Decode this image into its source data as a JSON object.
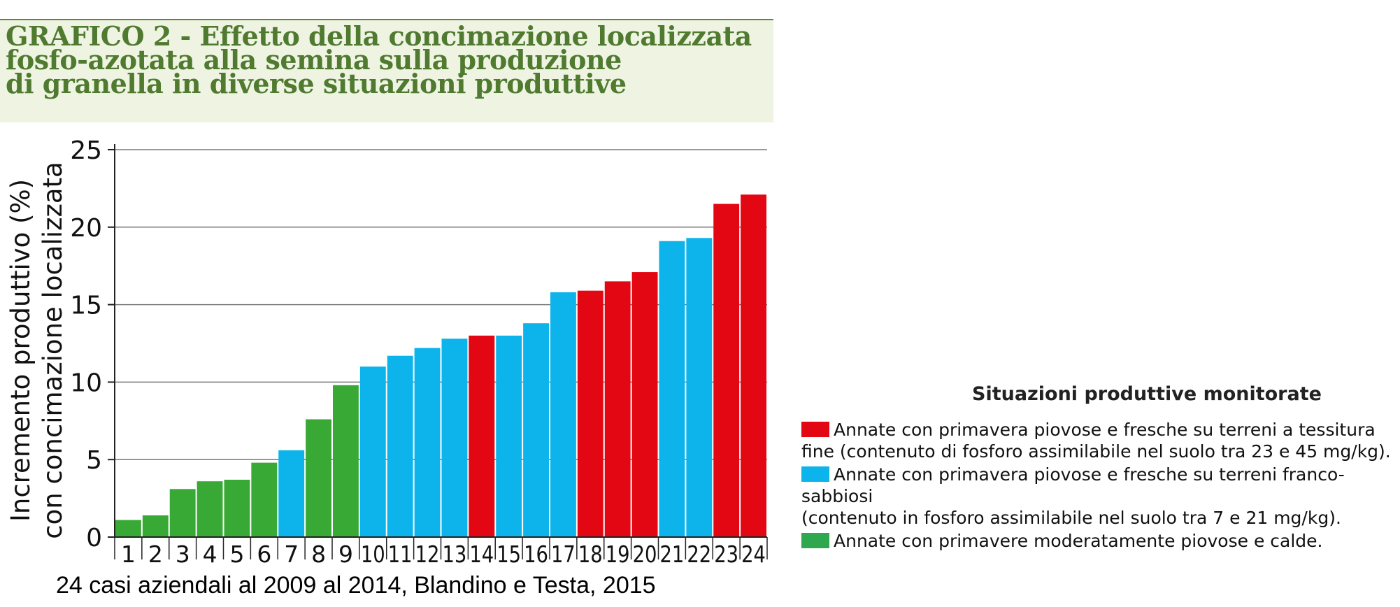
{
  "header": {
    "title_lines": [
      "GRAFICO 2 - Effetto della concimazione localizzata",
      "fosfo-azotata alla semina sulla produzione",
      "di granella in diverse situazioni produttive"
    ]
  },
  "legend": {
    "title": "Situazioni produttive monitorate",
    "items": [
      {
        "text": "Annate con primavera piovose e fresche su terreni a tessitura\nfine (contenuto di fosforo assimilabile nel suolo tra 23 e 45 mg/kg).",
        "color": "#e30613"
      },
      {
        "text": "Annate con primavera piovose e fresche su terreni franco-sabbiosi\n(contenuto in fosforo assimilabile nel suolo tra 7 e 21 mg/kg).",
        "color": "#0db4ec"
      },
      {
        "text": "Annate con primavere moderatamente piovose e calde.",
        "color": "#2ea84f"
      }
    ]
  },
  "caption": "24 casi aziendali al 2009 al 2014, Blandino e Testa, 2015",
  "chart_data": {
    "type": "bar",
    "title": "GRAFICO 2 - Effetto della concimazione localizzata fosfo-azotata alla semina sulla produzione di granella in diverse situazioni produttive",
    "xlabel": "",
    "ylabel_lines": [
      "Incremento produttivo (%)",
      "con concimazione localizzata"
    ],
    "ylim": [
      0,
      25
    ],
    "yticks": [
      0,
      5,
      10,
      15,
      20,
      25
    ],
    "grid": "horizontal",
    "legend_placement": "right",
    "categories": [
      "1",
      "2",
      "3",
      "4",
      "5",
      "6",
      "7",
      "8",
      "9",
      "10",
      "11",
      "12",
      "13",
      "14",
      "15",
      "16",
      "17",
      "18",
      "19",
      "20",
      "21",
      "22",
      "23",
      "24"
    ],
    "values": [
      1.1,
      1.4,
      3.1,
      3.6,
      3.7,
      4.8,
      5.6,
      7.6,
      9.8,
      11.0,
      11.7,
      12.2,
      12.8,
      13.0,
      13.0,
      13.8,
      15.8,
      15.9,
      16.5,
      17.1,
      19.1,
      19.3,
      21.5,
      22.1
    ],
    "groups": [
      "green",
      "green",
      "green",
      "green",
      "green",
      "green",
      "blue",
      "green",
      "green",
      "blue",
      "blue",
      "blue",
      "blue",
      "red",
      "blue",
      "blue",
      "blue",
      "red",
      "red",
      "red",
      "blue",
      "blue",
      "red",
      "red"
    ],
    "group_colors": {
      "red": "#e30613",
      "blue": "#0db4ec",
      "green": "#39a935"
    }
  }
}
